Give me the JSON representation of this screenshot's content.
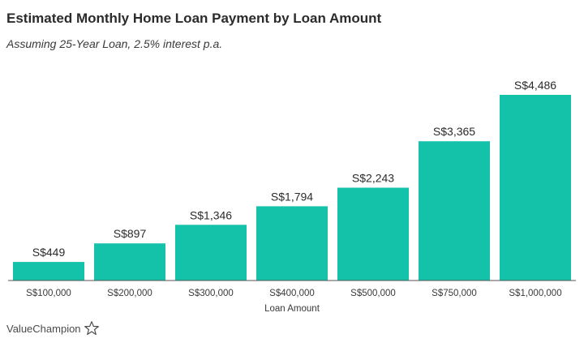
{
  "header": {
    "title": "Estimated Monthly Home Loan Payment by Loan Amount",
    "subtitle": "Assuming 25-Year Loan, 2.5% interest p.a."
  },
  "brand": {
    "name": "ValueChampion",
    "icon": "star-outline-icon"
  },
  "colors": {
    "bar": "#13c2a9",
    "axis": "#555555",
    "text": "#2b2b2b"
  },
  "chart_data": {
    "type": "bar",
    "title": "Estimated Monthly Home Loan Payment by Loan Amount",
    "subtitle": "Assuming 25-Year Loan, 2.5% interest p.a.",
    "xlabel": "Loan Amount",
    "ylabel": "",
    "categories": [
      "S$100,000",
      "S$200,000",
      "S$300,000",
      "S$400,000",
      "S$500,000",
      "S$750,000",
      "S$1,000,000"
    ],
    "values": [
      449,
      897,
      1346,
      1794,
      2243,
      3365,
      4486
    ],
    "data_labels": [
      "S$449",
      "S$897",
      "S$1,346",
      "S$1,794",
      "S$2,243",
      "S$3,365",
      "S$4,486"
    ],
    "ylim": [
      0,
      4486
    ],
    "grid": false,
    "legend": "none"
  }
}
